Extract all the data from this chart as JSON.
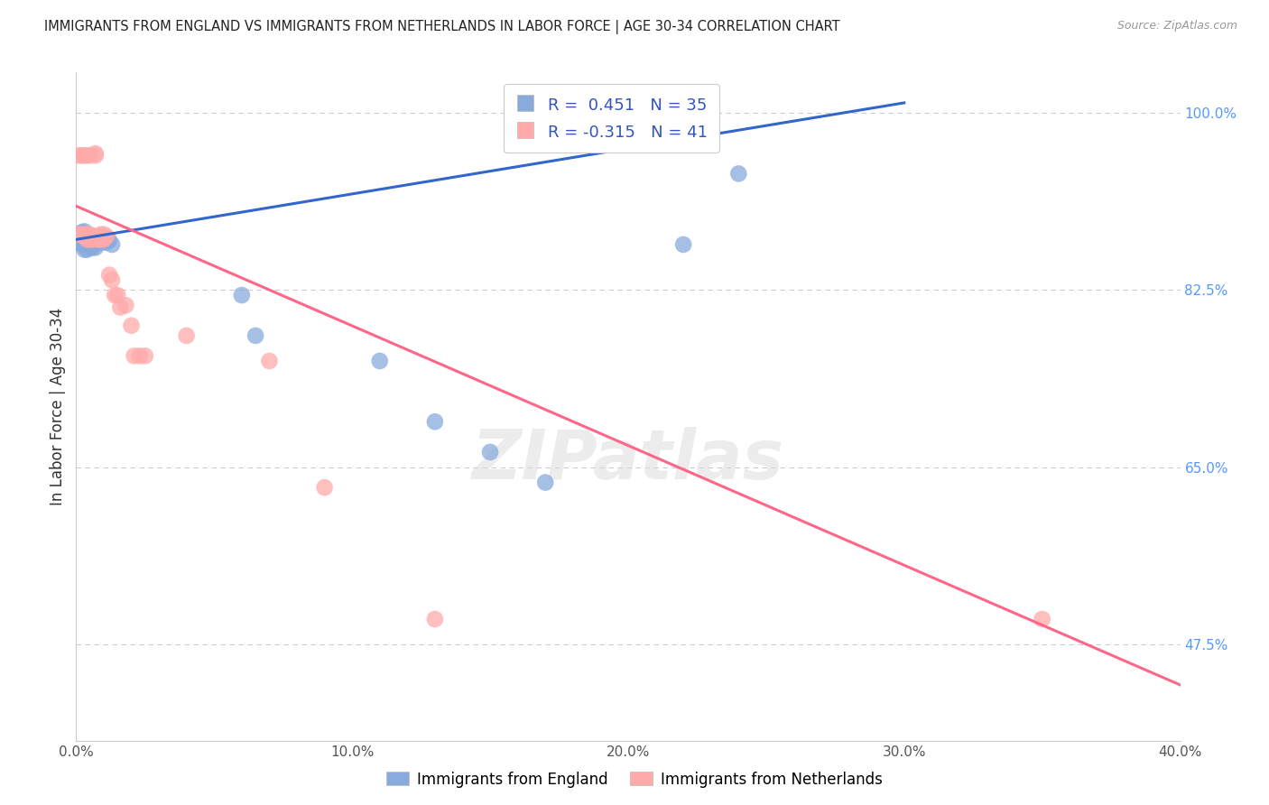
{
  "title": "IMMIGRANTS FROM ENGLAND VS IMMIGRANTS FROM NETHERLANDS IN LABOR FORCE | AGE 30-34 CORRELATION CHART",
  "source": "Source: ZipAtlas.com",
  "ylabel": "In Labor Force | Age 30-34",
  "xlim": [
    0.0,
    0.4
  ],
  "ylim": [
    0.38,
    1.04
  ],
  "xtick_labels": [
    "0.0%",
    "10.0%",
    "20.0%",
    "30.0%",
    "40.0%"
  ],
  "xtick_values": [
    0.0,
    0.1,
    0.2,
    0.3,
    0.4
  ],
  "ytick_labels_right": [
    "100.0%",
    "82.5%",
    "65.0%",
    "47.5%"
  ],
  "ytick_values_right": [
    1.0,
    0.825,
    0.65,
    0.475
  ],
  "blue_color": "#88AADD",
  "pink_color": "#FFAAAA",
  "blue_line_color": "#3366CC",
  "pink_line_color": "#FF6688",
  "blue_R": 0.451,
  "blue_N": 35,
  "pink_R": -0.315,
  "pink_N": 41,
  "blue_legend": "Immigrants from England",
  "pink_legend": "Immigrants from Netherlands",
  "watermark": "ZIPatlas",
  "blue_line_x0": 0.0,
  "blue_line_y0": 0.875,
  "blue_line_x1": 0.3,
  "blue_line_y1": 1.01,
  "pink_line_x0": 0.0,
  "pink_line_y0": 0.908,
  "pink_line_x1": 0.4,
  "pink_line_y1": 0.435,
  "blue_points_x": [
    0.001,
    0.001,
    0.002,
    0.002,
    0.002,
    0.003,
    0.003,
    0.003,
    0.003,
    0.004,
    0.004,
    0.004,
    0.005,
    0.005,
    0.005,
    0.006,
    0.006,
    0.006,
    0.007,
    0.007,
    0.008,
    0.008,
    0.009,
    0.01,
    0.011,
    0.012,
    0.013,
    0.06,
    0.065,
    0.11,
    0.13,
    0.15,
    0.17,
    0.22,
    0.24
  ],
  "blue_points_y": [
    0.878,
    0.872,
    0.882,
    0.875,
    0.87,
    0.883,
    0.878,
    0.872,
    0.865,
    0.878,
    0.872,
    0.865,
    0.878,
    0.873,
    0.867,
    0.878,
    0.873,
    0.867,
    0.873,
    0.867,
    0.877,
    0.873,
    0.872,
    0.877,
    0.872,
    0.874,
    0.87,
    0.82,
    0.78,
    0.755,
    0.695,
    0.665,
    0.635,
    0.87,
    0.94
  ],
  "pink_points_x": [
    0.001,
    0.001,
    0.002,
    0.002,
    0.003,
    0.003,
    0.003,
    0.004,
    0.004,
    0.004,
    0.004,
    0.005,
    0.005,
    0.005,
    0.006,
    0.006,
    0.007,
    0.007,
    0.007,
    0.008,
    0.008,
    0.009,
    0.009,
    0.01,
    0.01,
    0.011,
    0.012,
    0.013,
    0.014,
    0.015,
    0.016,
    0.018,
    0.02,
    0.021,
    0.023,
    0.025,
    0.04,
    0.07,
    0.09,
    0.13,
    0.35
  ],
  "pink_points_y": [
    0.958,
    0.88,
    0.88,
    0.958,
    0.88,
    0.958,
    0.878,
    0.88,
    0.958,
    0.878,
    0.875,
    0.875,
    0.88,
    0.958,
    0.878,
    0.875,
    0.96,
    0.958,
    0.878,
    0.878,
    0.875,
    0.88,
    0.875,
    0.88,
    0.875,
    0.878,
    0.84,
    0.835,
    0.82,
    0.82,
    0.808,
    0.81,
    0.79,
    0.76,
    0.76,
    0.76,
    0.78,
    0.755,
    0.63,
    0.5,
    0.5
  ]
}
